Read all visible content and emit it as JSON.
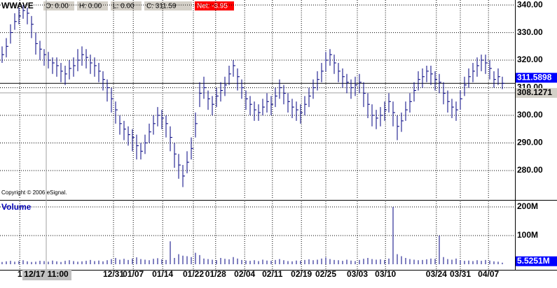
{
  "chart_data": {
    "type": "ohlc",
    "title": "WWAVE",
    "quote": [
      "O: 0.00",
      "H: 0.00",
      "L: 0.00",
      "C: 311.59",
      "Net: -3.95"
    ],
    "copyright": "Copyright © 2006 eSignal.",
    "color": "#000080",
    "grid": true,
    "xlim": [
      0,
      122.5
    ],
    "xticks": [
      {
        "value": 4.7,
        "label": "1"
      },
      {
        "value": 27,
        "label": "12/31"
      },
      {
        "value": 31.7,
        "label": "01/07"
      },
      {
        "value": 38.7,
        "label": "01/14"
      },
      {
        "value": 46,
        "label": "01/22"
      },
      {
        "value": 51.3,
        "label": "01/28"
      },
      {
        "value": 58.2,
        "label": "02/04"
      },
      {
        "value": 64.8,
        "label": "02/11"
      },
      {
        "value": 71.7,
        "label": "02/19"
      },
      {
        "value": 77.5,
        "label": "02/25"
      },
      {
        "value": 85,
        "label": "03/03"
      },
      {
        "value": 91.7,
        "label": "03/10"
      },
      {
        "value": 103.8,
        "label": "03/24"
      },
      {
        "value": 109.5,
        "label": "03/31"
      },
      {
        "value": 116.2,
        "label": "04/07"
      }
    ],
    "cursor": {
      "value": 11,
      "label": "12/17 11:00"
    },
    "ylim": [
      269.6,
      341.8
    ],
    "yticks": [
      {
        "value": 280,
        "label": "280.00"
      },
      {
        "value": 290,
        "label": "290.00"
      },
      {
        "value": 300,
        "label": "300.00"
      },
      {
        "value": 310,
        "label": "310.00"
      },
      {
        "value": 320,
        "label": "320.00"
      },
      {
        "value": 330,
        "label": "330.00"
      },
      {
        "value": 340,
        "label": "340.00"
      }
    ],
    "last_price": 311.5898,
    "reference_price": 308.1271,
    "high": [
      325,
      328,
      333,
      337,
      339,
      340,
      339,
      336,
      330,
      327,
      324,
      323,
      321,
      321,
      319,
      318,
      320,
      321,
      324,
      325,
      324,
      322,
      321,
      319,
      316,
      313,
      310,
      305,
      300,
      298,
      296,
      295,
      293,
      290,
      293,
      297,
      300,
      303,
      302,
      300,
      296,
      290,
      286,
      282,
      287,
      292,
      301,
      312,
      314,
      309,
      307,
      310,
      312,
      314,
      318,
      320,
      317,
      313,
      309,
      307,
      305,
      304,
      306,
      308,
      307,
      310,
      313,
      311,
      308,
      306,
      305,
      304,
      307,
      310,
      313,
      316,
      319,
      323,
      324,
      322,
      319,
      317,
      315,
      313,
      314,
      315,
      312,
      308,
      304,
      302,
      303,
      305,
      308,
      305,
      300,
      301,
      305,
      308,
      312,
      316,
      317,
      318,
      318,
      316,
      315,
      312,
      309,
      306,
      305,
      309,
      314,
      317,
      319,
      321,
      322,
      322,
      320,
      316,
      317,
      314
    ],
    "low": [
      319,
      321,
      326,
      331,
      333,
      335,
      333,
      328,
      322,
      320,
      318,
      317,
      315,
      314,
      312,
      311,
      313,
      314,
      316,
      318,
      317,
      315,
      314,
      312,
      309,
      305,
      301,
      297,
      293,
      291,
      289,
      287,
      284,
      284,
      286,
      290,
      293,
      296,
      295,
      292,
      287,
      281,
      277,
      274,
      279,
      284,
      292,
      303,
      306,
      302,
      300,
      303,
      305,
      307,
      311,
      314,
      309,
      306,
      302,
      300,
      298,
      298,
      300,
      301,
      300,
      303,
      306,
      304,
      301,
      299,
      298,
      297,
      300,
      303,
      306,
      309,
      312,
      316,
      318,
      315,
      312,
      310,
      308,
      306,
      307,
      308,
      303,
      299,
      296,
      295,
      296,
      298,
      301,
      296,
      291,
      294,
      298,
      301,
      305,
      309,
      310,
      312,
      311,
      309,
      308,
      304,
      301,
      299,
      298,
      302,
      307,
      310,
      312,
      314,
      316,
      315,
      313,
      310,
      311,
      309.5
    ],
    "close": [
      322,
      325,
      330,
      334,
      336,
      338,
      337,
      333,
      326,
      324,
      322,
      320,
      319,
      318,
      316,
      315,
      317,
      318,
      320,
      322,
      321,
      319,
      318,
      316,
      313,
      310,
      306,
      302,
      297,
      295,
      293,
      292,
      289,
      287,
      290,
      294,
      297,
      300,
      299,
      297,
      292,
      286,
      282,
      278,
      283,
      288,
      297,
      308,
      310,
      306,
      304,
      307,
      309,
      311,
      315,
      318,
      314,
      310,
      306,
      304,
      302,
      301,
      303,
      305,
      304,
      307,
      310,
      308,
      305,
      303,
      302,
      301,
      304,
      307,
      310,
      313,
      316,
      320,
      322,
      319,
      316,
      314,
      312,
      310,
      311,
      312,
      308,
      304,
      300,
      299,
      300,
      302,
      305,
      301,
      296,
      298,
      302,
      305,
      309,
      313,
      314,
      316,
      315,
      313,
      312,
      308,
      305,
      303,
      302,
      306,
      311,
      314,
      316,
      318,
      320,
      319,
      317,
      313,
      314,
      311.59
    ],
    "volume": {
      "title": "Volume",
      "ylim": [
        -17,
        219.5
      ],
      "yticks": [
        {
          "value": 100,
          "label": "100M"
        },
        {
          "value": 200,
          "label": "200M"
        }
      ],
      "last": {
        "value": 5.5251,
        "label": "5.5251M"
      },
      "values": [
        8,
        10,
        12,
        9,
        11,
        14,
        10,
        8,
        9,
        12,
        11,
        9,
        13,
        10,
        8,
        12,
        14,
        11,
        9,
        10,
        12,
        15,
        11,
        13,
        10,
        14,
        18,
        22,
        16,
        19,
        15,
        20,
        24,
        18,
        16,
        14,
        19,
        21,
        17,
        15,
        80,
        22,
        35,
        30,
        28,
        25,
        40,
        32,
        20,
        18,
        16,
        14,
        22,
        19,
        17,
        25,
        20,
        15,
        13,
        12,
        14,
        11,
        16,
        13,
        12,
        15,
        18,
        14,
        11,
        10,
        13,
        12,
        15,
        17,
        14,
        16,
        20,
        24,
        18,
        15,
        14,
        12,
        16,
        13,
        11,
        15,
        19,
        22,
        18,
        16,
        17,
        15,
        20,
        200,
        35,
        28,
        22,
        18,
        16,
        14,
        15,
        17,
        20,
        19,
        100,
        25,
        18,
        16,
        20,
        14,
        12,
        13,
        11,
        14,
        12,
        15,
        13,
        10,
        9,
        5.5251
      ]
    }
  }
}
